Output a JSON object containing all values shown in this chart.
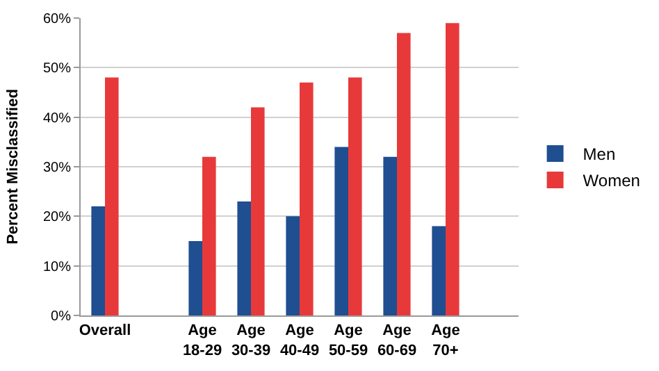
{
  "chart_data": {
    "type": "bar",
    "ylabel": "Percent Misclassified",
    "categories": [
      "Overall",
      null,
      "Age\n18-29",
      "Age\n30-39",
      "Age\n40-49",
      "Age\n50-59",
      "Age\n60-69",
      "Age\n70+",
      null
    ],
    "series": [
      {
        "name": "Men",
        "color": "#1f4e91",
        "values": [
          22,
          null,
          15,
          23,
          20,
          34,
          32,
          18,
          null
        ]
      },
      {
        "name": "Women",
        "color": "#e8393a",
        "values": [
          48,
          null,
          32,
          42,
          47,
          48,
          57,
          59,
          null
        ]
      }
    ],
    "ylim": [
      0,
      60
    ],
    "yticks": [
      {
        "value": 0,
        "label": "0%"
      },
      {
        "value": 10,
        "label": "10%"
      },
      {
        "value": 20,
        "label": "20%"
      },
      {
        "value": 30,
        "label": "30%"
      },
      {
        "value": 40,
        "label": "40%"
      },
      {
        "value": 50,
        "label": "50%"
      },
      {
        "value": 60,
        "label": "60%"
      }
    ],
    "grid": "y",
    "legend": "right"
  }
}
